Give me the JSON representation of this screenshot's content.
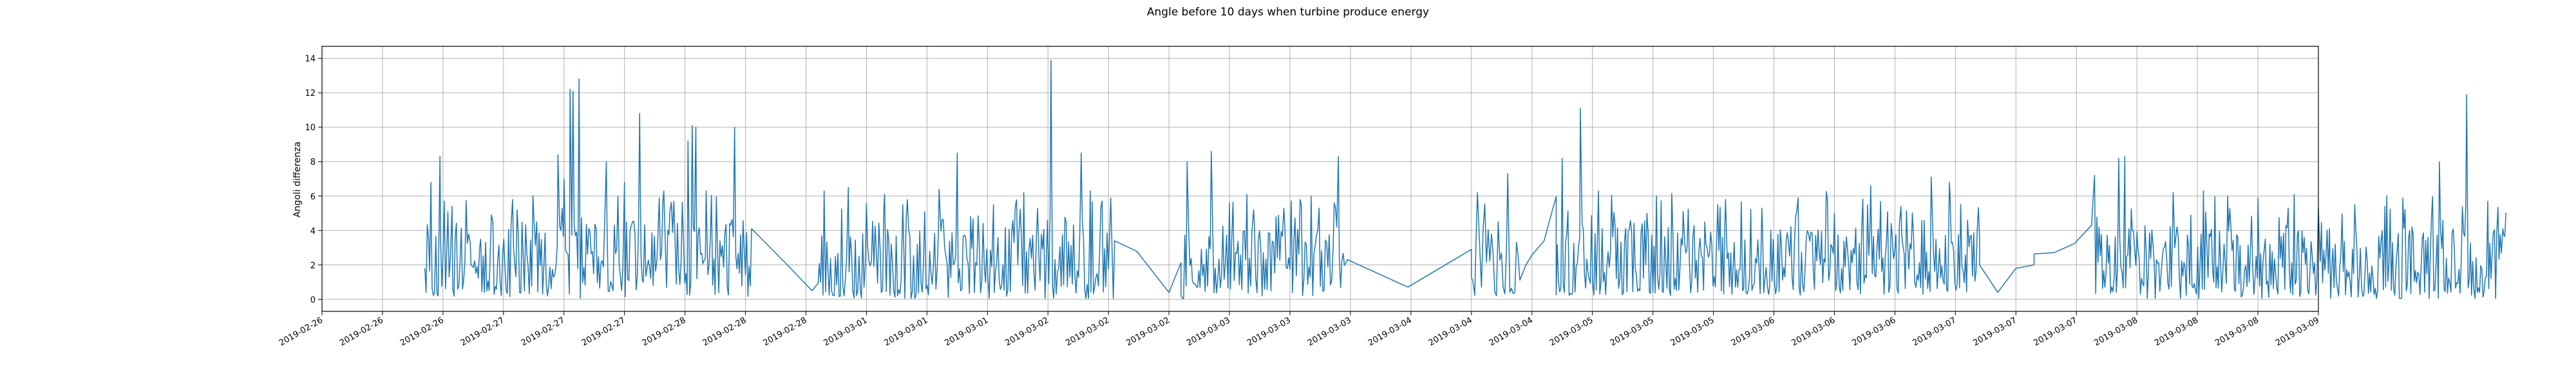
{
  "chart_data": {
    "type": "line",
    "title": "Angle before 10 days when turbine produce energy",
    "xlabel": "",
    "ylabel": "Angoli differenza",
    "ylim": [
      -0.7,
      14.7
    ],
    "yticks": [
      0,
      2,
      4,
      6,
      8,
      10,
      12,
      14
    ],
    "xlim": [
      -3.0,
      30.0
    ],
    "grid": true,
    "line_color": "#1f77b4",
    "xticks": [
      {
        "x": -3,
        "label": "2019-02-26"
      },
      {
        "x": -2,
        "label": "2019-02-26"
      },
      {
        "x": -1,
        "label": "2019-02-26"
      },
      {
        "x": 0,
        "label": "2019-02-27"
      },
      {
        "x": 1,
        "label": "2019-02-27"
      },
      {
        "x": 2,
        "label": "2019-02-27"
      },
      {
        "x": 3,
        "label": "2019-02-28"
      },
      {
        "x": 4,
        "label": "2019-02-28"
      },
      {
        "x": 5,
        "label": "2019-02-28"
      },
      {
        "x": 6,
        "label": "2019-03-01"
      },
      {
        "x": 7,
        "label": "2019-03-01"
      },
      {
        "x": 8,
        "label": "2019-03-01"
      },
      {
        "x": 9,
        "label": "2019-03-02"
      },
      {
        "x": 10,
        "label": "2019-03-02"
      },
      {
        "x": 11,
        "label": "2019-03-02"
      },
      {
        "x": 12,
        "label": "2019-03-03"
      },
      {
        "x": 13,
        "label": "2019-03-03"
      },
      {
        "x": 14,
        "label": "2019-03-03"
      },
      {
        "x": 15,
        "label": "2019-03-04"
      },
      {
        "x": 16,
        "label": "2019-03-04"
      },
      {
        "x": 17,
        "label": "2019-03-04"
      },
      {
        "x": 18,
        "label": "2019-03-05"
      },
      {
        "x": 19,
        "label": "2019-03-05"
      },
      {
        "x": 20,
        "label": "2019-03-05"
      },
      {
        "x": 21,
        "label": "2019-03-06"
      },
      {
        "x": 22,
        "label": "2019-03-06"
      },
      {
        "x": 23,
        "label": "2019-03-06"
      },
      {
        "x": 24,
        "label": "2019-03-07"
      },
      {
        "x": 25,
        "label": "2019-03-07"
      },
      {
        "x": 26,
        "label": "2019-03-07"
      },
      {
        "x": 27,
        "label": "2019-03-08"
      },
      {
        "x": 28,
        "label": "2019-03-08"
      },
      {
        "x": 29,
        "label": "2019-03-08"
      },
      {
        "x": 30,
        "label": "2019-03-09"
      }
    ],
    "series": [
      {
        "name": "Angoli differenza",
        "segments": [
          {
            "x_start": -1.3,
            "x_end": 4.1,
            "points": 270,
            "seed": 11,
            "mean": 2.3,
            "spread": 1.6,
            "peaks": [
              [
                -1.3,
                1.8
              ],
              [
                -1.2,
                6.8
              ],
              [
                -1.05,
                8.3
              ],
              [
                -0.85,
                5.4
              ],
              [
                -0.55,
                3.3
              ],
              [
                -0.2,
                4.9
              ],
              [
                0.15,
                5.8
              ],
              [
                0.55,
                4.5
              ],
              [
                0.9,
                8.4
              ],
              [
                1.0,
                7.0
              ],
              [
                1.1,
                12.2
              ],
              [
                1.15,
                12.1
              ],
              [
                1.25,
                12.8
              ],
              [
                1.7,
                8.0
              ],
              [
                2.0,
                6.8
              ],
              [
                2.25,
                10.8
              ],
              [
                2.65,
                6.3
              ],
              [
                2.75,
                5.1
              ],
              [
                3.05,
                9.2
              ],
              [
                3.12,
                10.1
              ],
              [
                3.18,
                10.0
              ],
              [
                3.35,
                6.3
              ],
              [
                3.75,
                4.3
              ],
              [
                3.82,
                10.0
              ],
              [
                4.1,
                4.1
              ]
            ]
          },
          {
            "x_start": 4.1,
            "x_end": 5.2,
            "points": 3,
            "seed": 3,
            "mean": 2.0,
            "spread": 0.2,
            "peaks": [
              [
                4.1,
                4.1
              ],
              [
                5.1,
                0.5
              ]
            ]
          },
          {
            "x_start": 5.2,
            "x_end": 10.1,
            "points": 240,
            "seed": 23,
            "mean": 2.0,
            "spread": 1.5,
            "peaks": [
              [
                5.3,
                6.3
              ],
              [
                5.7,
                6.5
              ],
              [
                6.3,
                6.1
              ],
              [
                6.6,
                5.5
              ],
              [
                7.2,
                6.4
              ],
              [
                7.5,
                8.5
              ],
              [
                8.1,
                5.5
              ],
              [
                8.6,
                6.2
              ],
              [
                9.05,
                13.9
              ],
              [
                9.3,
                4.5
              ],
              [
                9.55,
                8.5
              ],
              [
                9.7,
                6.3
              ],
              [
                10.05,
                4.3
              ]
            ]
          },
          {
            "x_start": 10.1,
            "x_end": 11.2,
            "points": 4,
            "seed": 5,
            "mean": 2.5,
            "spread": 0.3,
            "peaks": [
              [
                10.1,
                3.4
              ],
              [
                11.0,
                0.4
              ]
            ]
          },
          {
            "x_start": 11.2,
            "x_end": 13.9,
            "points": 130,
            "seed": 31,
            "mean": 2.1,
            "spread": 1.6,
            "peaks": [
              [
                11.3,
                8.0
              ],
              [
                11.7,
                8.6
              ],
              [
                12.0,
                5.6
              ],
              [
                12.4,
                5.2
              ],
              [
                12.9,
                5.3
              ],
              [
                13.35,
                6.0
              ],
              [
                13.8,
                8.3
              ]
            ]
          },
          {
            "x_start": 13.9,
            "x_end": 16.0,
            "points": 3,
            "seed": 7,
            "mean": 2.6,
            "spread": 0.3,
            "peaks": [
              [
                13.95,
                2.3
              ],
              [
                16.0,
                2.9
              ]
            ]
          },
          {
            "x_start": 16.0,
            "x_end": 16.8,
            "points": 30,
            "seed": 41,
            "mean": 2.4,
            "spread": 1.6,
            "peaks": [
              [
                16.1,
                6.2
              ],
              [
                16.6,
                7.3
              ]
            ]
          },
          {
            "x_start": 16.8,
            "x_end": 17.4,
            "points": 4,
            "seed": 9,
            "mean": 2.7,
            "spread": 0.3,
            "peaks": [
              [
                16.9,
                2.0
              ],
              [
                17.2,
                3.4
              ]
            ]
          },
          {
            "x_start": 17.4,
            "x_end": 24.4,
            "points": 360,
            "seed": 53,
            "mean": 2.3,
            "spread": 1.5,
            "peaks": [
              [
                17.5,
                8.2
              ],
              [
                17.8,
                11.1
              ],
              [
                18.1,
                6.3
              ],
              [
                18.9,
                5.0
              ],
              [
                19.5,
                5.1
              ],
              [
                20.2,
                5.8
              ],
              [
                20.8,
                5.3
              ],
              [
                21.4,
                5.9
              ],
              [
                22.0,
                5.0
              ],
              [
                22.6,
                6.6
              ],
              [
                23.1,
                5.4
              ],
              [
                23.6,
                7.1
              ],
              [
                23.9,
                6.8
              ],
              [
                24.2,
                4.6
              ]
            ]
          },
          {
            "x_start": 24.4,
            "x_end": 25.3,
            "points": 4,
            "seed": 13,
            "mean": 2.0,
            "spread": 0.2,
            "peaks": [
              [
                24.4,
                2.0
              ],
              [
                25.0,
                1.8
              ],
              [
                25.3,
                2.0
              ]
            ]
          },
          {
            "x_start": 25.3,
            "x_end": 26.3,
            "points": 4,
            "seed": 17,
            "mean": 3.0,
            "spread": 0.5,
            "peaks": [
              [
                26.25,
                4.3
              ]
            ]
          },
          {
            "x_start": 26.3,
            "x_end": 33.1,
            "points": 360,
            "seed": 61,
            "mean": 2.1,
            "spread": 1.6,
            "peaks": [
              [
                26.3,
                7.2
              ],
              [
                26.7,
                8.2
              ],
              [
                26.8,
                8.3
              ],
              [
                27.6,
                6.2
              ],
              [
                28.1,
                6.3
              ],
              [
                28.5,
                6.0
              ],
              [
                29.0,
                5.9
              ],
              [
                29.6,
                6.1
              ],
              [
                30.0,
                5.3
              ],
              [
                30.6,
                5.5
              ],
              [
                31.1,
                5.4
              ],
              [
                32.0,
                8.0
              ],
              [
                32.45,
                11.9
              ],
              [
                32.8,
                5.7
              ],
              [
                33.05,
                4.1
              ]
            ]
          }
        ]
      }
    ]
  }
}
